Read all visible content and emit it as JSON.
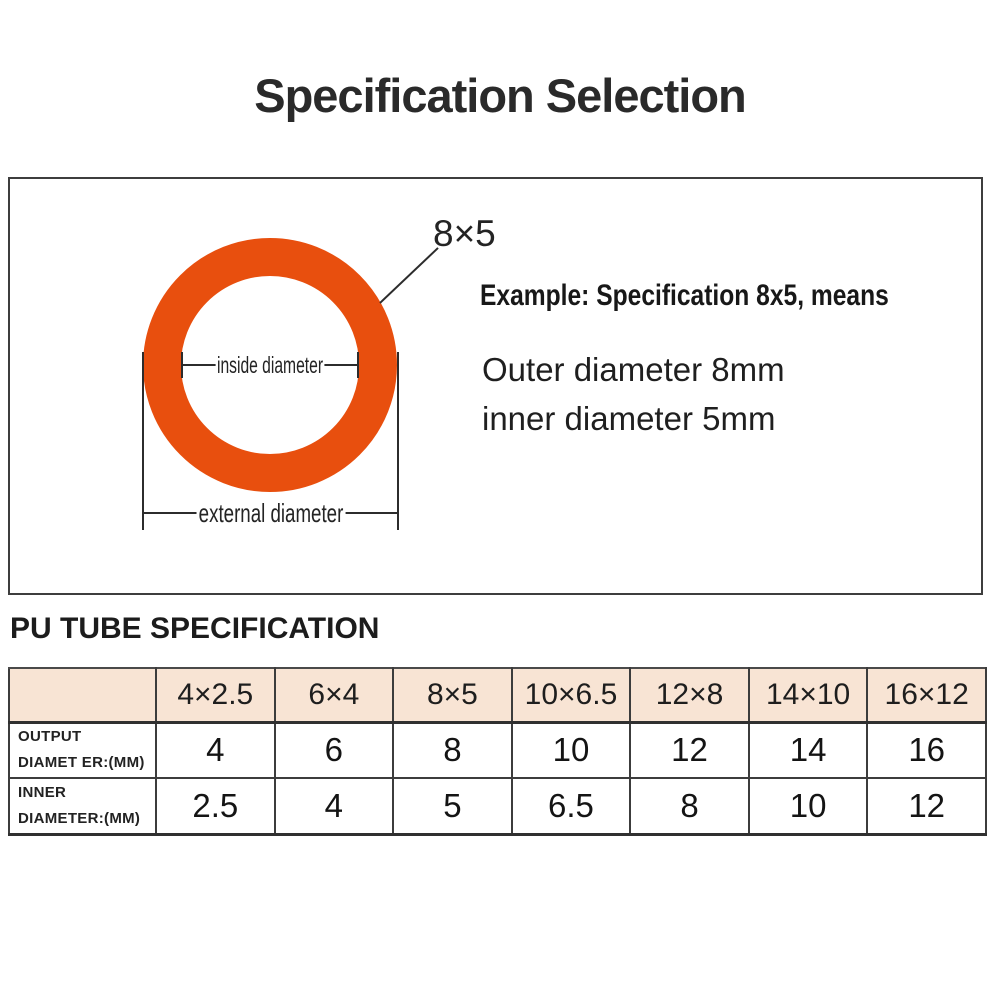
{
  "page": {
    "title": "Specification Selection"
  },
  "diagram": {
    "ring_color": "#e84f0e",
    "callout_label": "8×5",
    "inside_diameter_label": "inside diameter",
    "external_diameter_label": "external diameter",
    "example_heading": "Example: Specification 8x5, means",
    "example_line1": "Outer diameter 8mm",
    "example_line2": "inner diameter 5mm"
  },
  "spec_table": {
    "heading": "PU TUBE SPECIFICATION",
    "header_bg": "#f8e4d4",
    "columns": [
      "4×2.5",
      "6×4",
      "8×5",
      "10×6.5",
      "12×8",
      "14×10",
      "16×12"
    ],
    "rows": [
      {
        "label_line1": "OUTPUT",
        "label_line2": "DIAMET ER:(MM)",
        "values": [
          "4",
          "6",
          "8",
          "10",
          "12",
          "14",
          "16"
        ]
      },
      {
        "label_line1": "INNER",
        "label_line2": "DIAMETER:(MM)",
        "values": [
          "2.5",
          "4",
          "5",
          "6.5",
          "8",
          "10",
          "12"
        ]
      }
    ]
  }
}
